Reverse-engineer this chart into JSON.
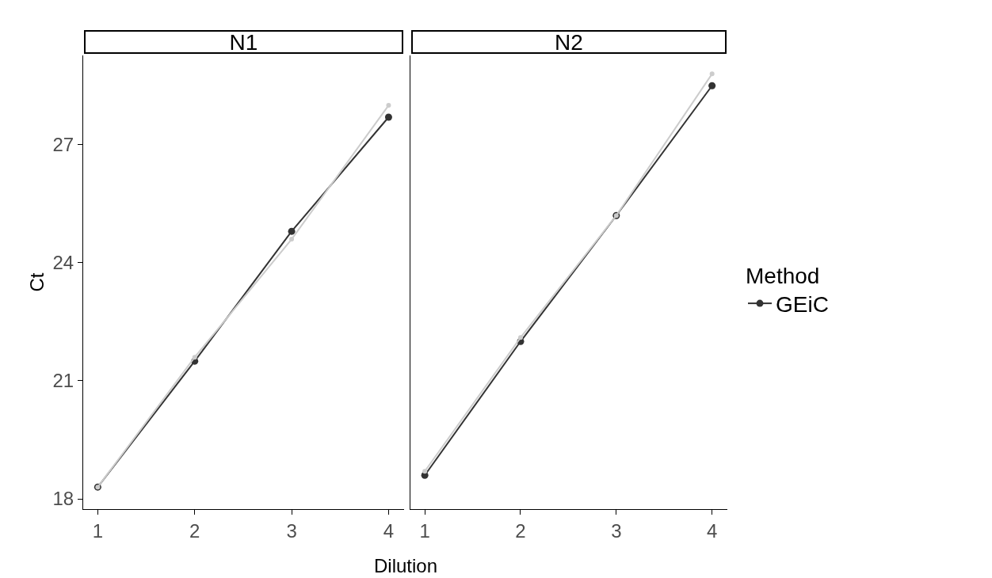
{
  "chart_data": [
    {
      "type": "line",
      "title": "N1",
      "xlabel": "Dilution",
      "ylabel": "Ct",
      "legend_title": "Method",
      "legend": "right",
      "marker": "circle",
      "line_style": "solid",
      "x": [
        1,
        2,
        3,
        4
      ],
      "xlim": [
        0.85,
        4.16
      ],
      "xticks": [
        1,
        2,
        3,
        4
      ],
      "ylim": [
        17.74,
        29.27
      ],
      "yticks": [
        18,
        21,
        24,
        27
      ],
      "series": [
        {
          "name": "GEiC",
          "color": "#333333",
          "values": [
            18.3,
            21.5,
            24.8,
            27.7
          ]
        },
        {
          "color": "#cccccc",
          "values": [
            18.3,
            21.6,
            24.6,
            28.0
          ]
        }
      ]
    },
    {
      "type": "line",
      "title": "N2",
      "marker": "circle",
      "line_style": "solid",
      "tick_labels": "x",
      "x": [
        1,
        2,
        3,
        4
      ],
      "xlim": [
        0.85,
        4.16
      ],
      "xticks": [
        1,
        2,
        3,
        4
      ],
      "ylim": [
        17.74,
        29.27
      ],
      "yticks": [
        18,
        21,
        24,
        27
      ],
      "series": [
        {
          "color": "#333333",
          "values": [
            18.6,
            22.0,
            25.2,
            28.5
          ]
        },
        {
          "color": "#cccccc",
          "values": [
            18.7,
            22.1,
            25.2,
            28.8
          ]
        }
      ]
    }
  ]
}
